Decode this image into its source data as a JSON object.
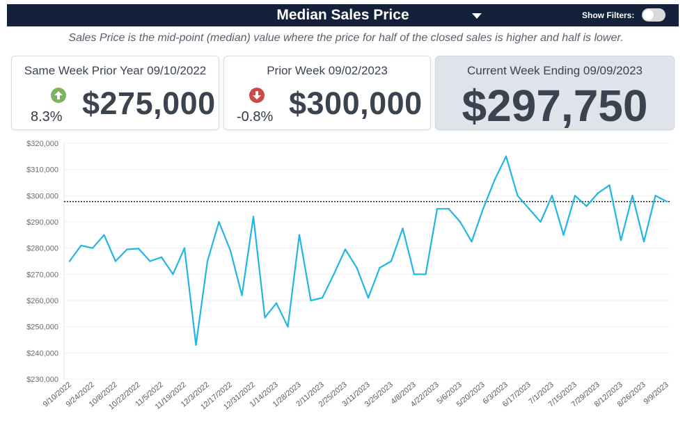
{
  "header": {
    "title": "Median Sales Price",
    "filters_label": "Show Filters:"
  },
  "subtitle": "Sales Price is the mid-point (median) value where the price for half of the closed sales is higher and half is lower.",
  "cards": [
    {
      "title": "Same Week Prior Year 09/10/2022",
      "change": "8.3%",
      "direction": "up",
      "value": "$275,000"
    },
    {
      "title": "Prior Week 09/02/2023",
      "change": "-0.8%",
      "direction": "down",
      "value": "$300,000"
    },
    {
      "title": "Current Week Ending 09/09/2023",
      "value": "$297,750"
    }
  ],
  "colors": {
    "line": "#1fb5e6",
    "up": "#7bb35c",
    "down": "#cc4a48",
    "header_bg": "#13213a"
  },
  "chart_data": {
    "type": "line",
    "ylim": [
      230000,
      320000
    ],
    "y_ticks": [
      {
        "value": 320000,
        "label": "$320,000"
      },
      {
        "value": 310000,
        "label": "$310,000"
      },
      {
        "value": 300000,
        "label": "$300,000"
      },
      {
        "value": 290000,
        "label": "$290,000"
      },
      {
        "value": 280000,
        "label": "$280,000"
      },
      {
        "value": 270000,
        "label": "$270,000"
      },
      {
        "value": 260000,
        "label": "$260,000"
      },
      {
        "value": 250000,
        "label": "$250,000"
      },
      {
        "value": 240000,
        "label": "$240,000"
      },
      {
        "value": 230000,
        "label": "$230,000"
      }
    ],
    "x_tick_labels": [
      "9/10/2022",
      "9/24/2022",
      "10/8/2022",
      "10/22/2022",
      "11/5/2022",
      "11/19/2022",
      "12/3/2022",
      "12/17/2022",
      "12/31/2022",
      "1/14/2023",
      "1/28/2023",
      "2/11/2023",
      "2/25/2023",
      "3/11/2023",
      "3/25/2023",
      "4/8/2023",
      "4/22/2023",
      "5/6/2023",
      "5/20/2023",
      "6/3/2023",
      "6/17/2023",
      "7/1/2023",
      "7/15/2023",
      "7/29/2023",
      "8/12/2023",
      "8/26/2023",
      "9/9/2023"
    ],
    "values": [
      275000,
      281000,
      280000,
      285000,
      275000,
      279500,
      279800,
      275000,
      276500,
      270000,
      280000,
      243000,
      275000,
      290000,
      279000,
      262000,
      292000,
      253500,
      259000,
      250000,
      285000,
      260000,
      261000,
      270000,
      279500,
      272500,
      261000,
      272500,
      275000,
      287500,
      270000,
      270000,
      295000,
      295000,
      290000,
      282500,
      295000,
      306000,
      315000,
      300000,
      295000,
      290000,
      300000,
      285000,
      300000,
      296000,
      301000,
      304000,
      283000,
      300000,
      282500,
      300000,
      297750
    ],
    "reference_line": 297750,
    "grid": "horizontal"
  }
}
